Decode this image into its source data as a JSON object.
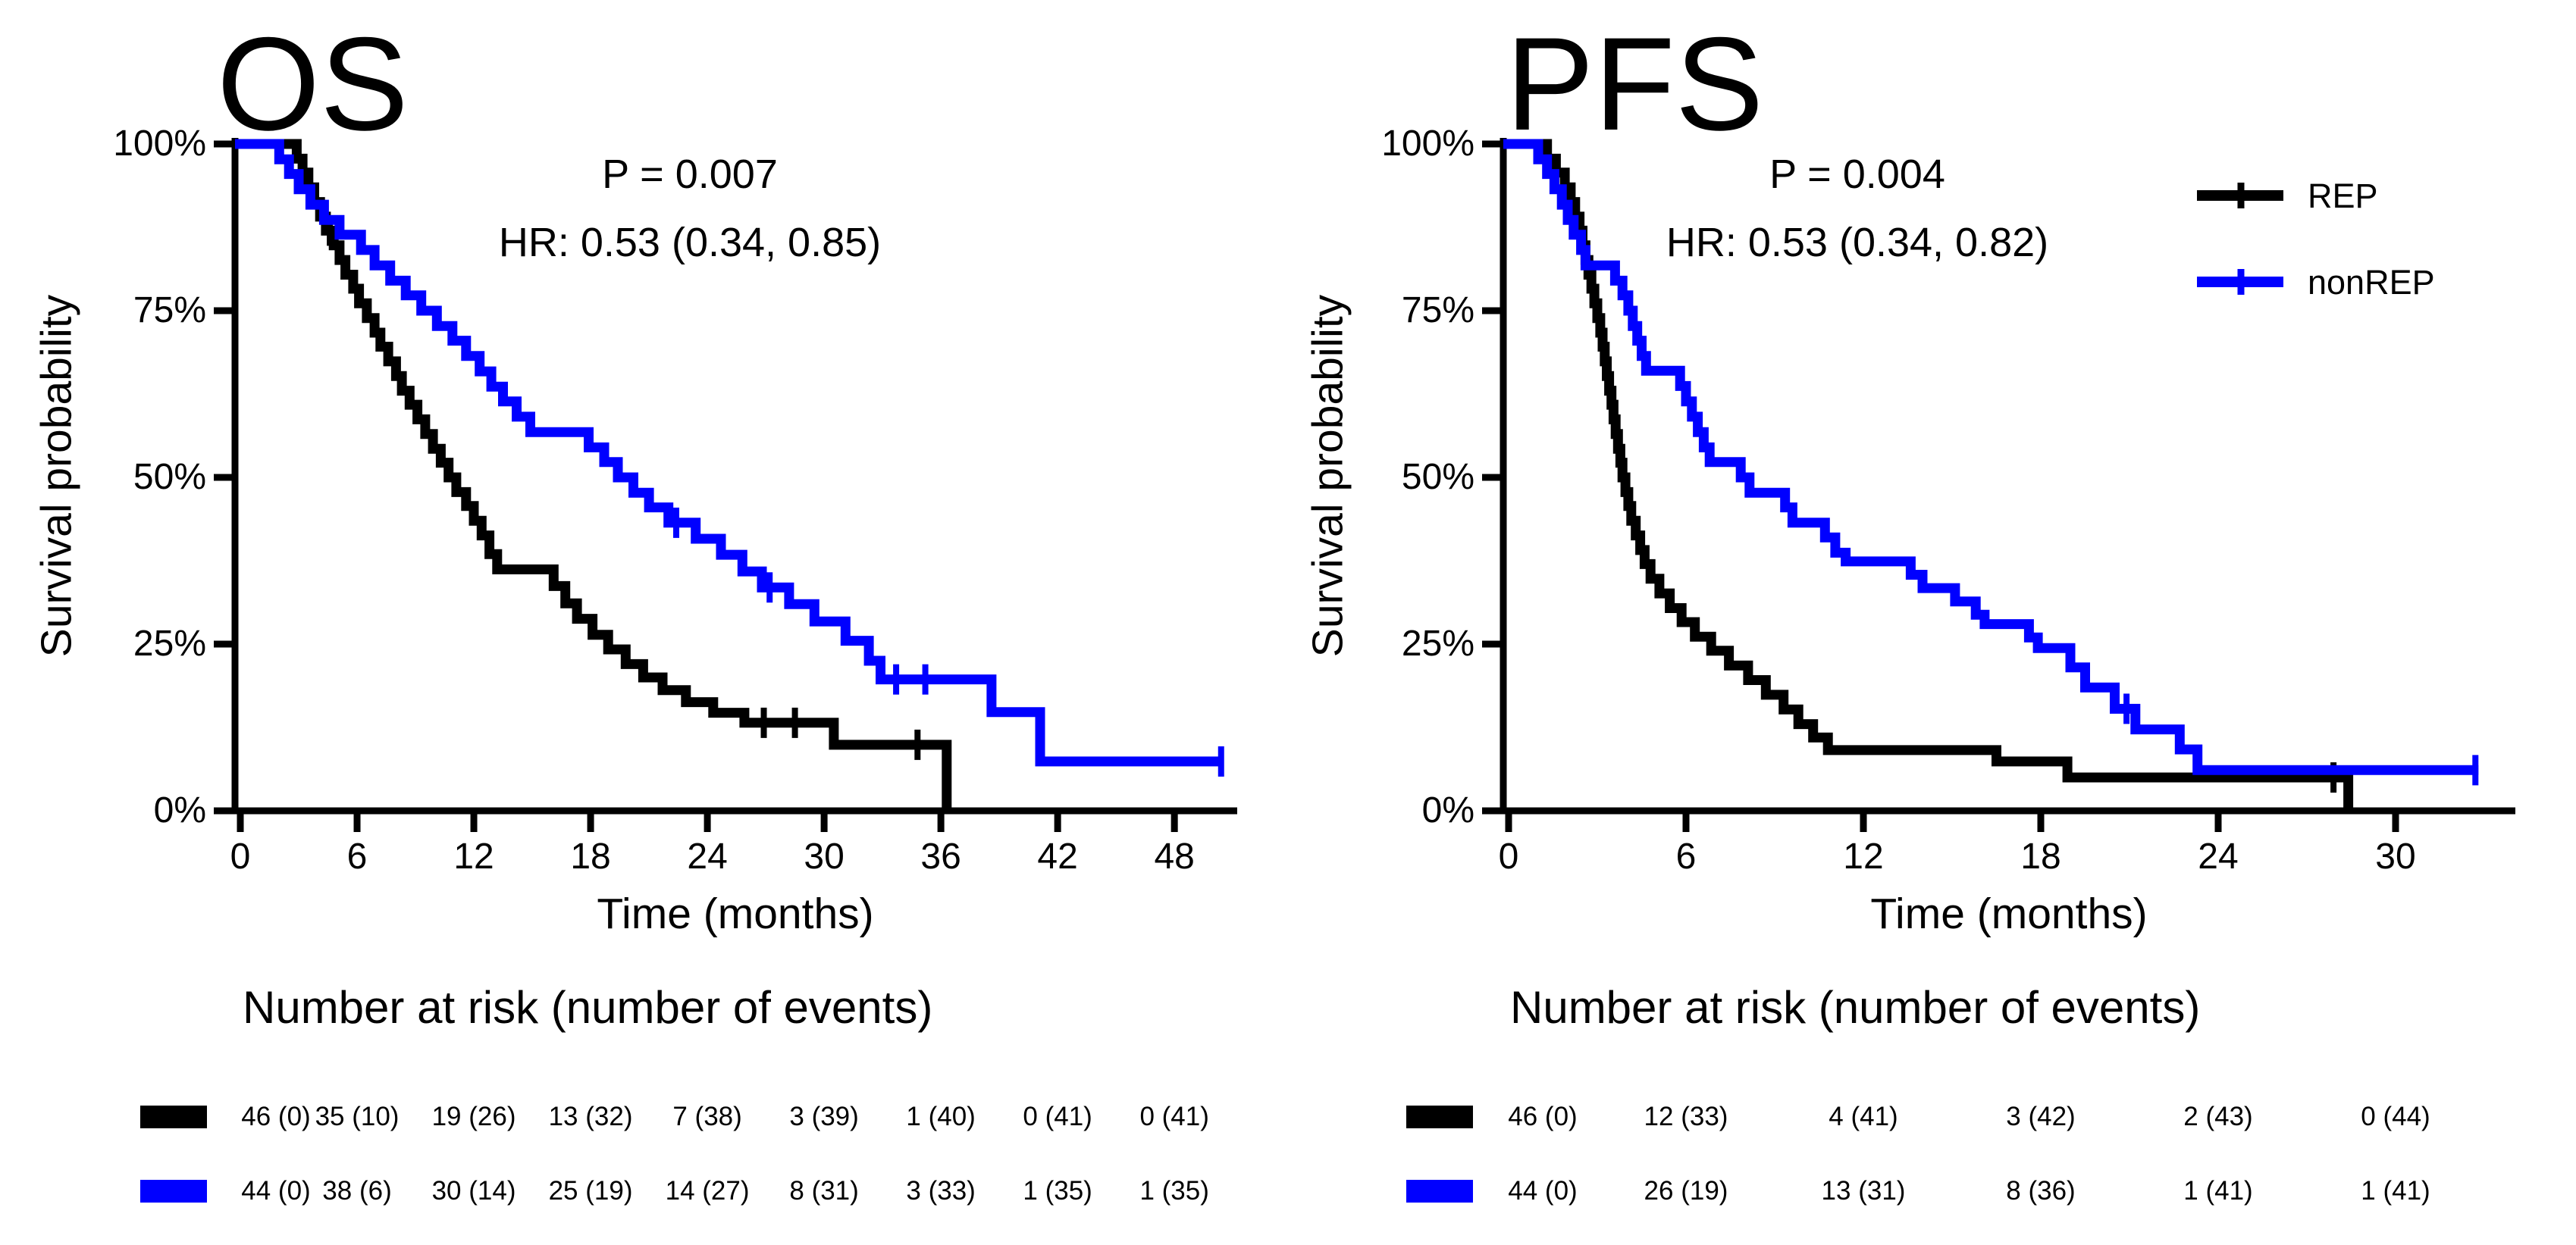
{
  "colors": {
    "rep": "#000000",
    "nonrep": "#0000ff",
    "axis": "#000000",
    "background": "#ffffff"
  },
  "chart_data": [
    {
      "type": "line",
      "subtype": "kaplan-meier-step",
      "title": "OS",
      "xlabel": "Time (months)",
      "ylabel": "Survival probability",
      "xlim": [
        0,
        51
      ],
      "ylim": [
        0,
        100
      ],
      "grid": false,
      "x_ticks": [
        0,
        6,
        12,
        18,
        24,
        30,
        36,
        42,
        48
      ],
      "y_ticks": [
        "100%",
        "75%",
        "50%",
        "25%",
        "0%"
      ],
      "y_tick_values": [
        100,
        75,
        50,
        25,
        0
      ],
      "annotations": {
        "p_value": "P = 0.007",
        "hazard_ratio": "HR: 0.53 (0.34, 0.85)"
      },
      "series": [
        {
          "name": "REP",
          "color": "#000000",
          "steps": [
            [
              0,
              100
            ],
            [
              2.9,
              97.8
            ],
            [
              3.2,
              95.7
            ],
            [
              3.5,
              93.5
            ],
            [
              3.8,
              91.3
            ],
            [
              4.1,
              89.1
            ],
            [
              4.4,
              87
            ],
            [
              4.8,
              84.8
            ],
            [
              5.1,
              82.6
            ],
            [
              5.4,
              80.4
            ],
            [
              5.8,
              78.3
            ],
            [
              6.1,
              76.1
            ],
            [
              6.5,
              73.9
            ],
            [
              6.9,
              71.7
            ],
            [
              7.2,
              69.6
            ],
            [
              7.6,
              67.4
            ],
            [
              8.0,
              65.2
            ],
            [
              8.3,
              63
            ],
            [
              8.7,
              60.9
            ],
            [
              9.1,
              58.7
            ],
            [
              9.5,
              56.5
            ],
            [
              9.9,
              54.3
            ],
            [
              10.3,
              52.2
            ],
            [
              10.7,
              50
            ],
            [
              11.1,
              47.8
            ],
            [
              11.6,
              45.7
            ],
            [
              12.0,
              43.5
            ],
            [
              12.4,
              41.3
            ],
            [
              12.8,
              38.5
            ],
            [
              13.2,
              36.2
            ],
            [
              16.1,
              33.7
            ],
            [
              16.7,
              31.1
            ],
            [
              17.3,
              28.8
            ],
            [
              18.1,
              26.4
            ],
            [
              18.9,
              24.2
            ],
            [
              19.8,
              22
            ],
            [
              20.7,
              20
            ],
            [
              21.7,
              18.1
            ],
            [
              22.9,
              16.3
            ],
            [
              24.3,
              14.7
            ],
            [
              25.9,
              13.2
            ],
            [
              30.5,
              9.9
            ],
            [
              36.3,
              0
            ]
          ],
          "censor_marks": [
            [
              4.6,
              87
            ],
            [
              26.9,
              13.2
            ],
            [
              28.5,
              13.2
            ],
            [
              34.8,
              9.9
            ]
          ]
        },
        {
          "name": "nonREP",
          "color": "#0000ff",
          "steps": [
            [
              0,
              100
            ],
            [
              2.0,
              97.7
            ],
            [
              2.5,
              95.5
            ],
            [
              3.0,
              93.2
            ],
            [
              3.6,
              90.9
            ],
            [
              4.3,
              88.6
            ],
            [
              5.1,
              86.4
            ],
            [
              6.2,
              84.1
            ],
            [
              6.9,
              81.8
            ],
            [
              7.7,
              79.5
            ],
            [
              8.5,
              77.3
            ],
            [
              9.3,
              75
            ],
            [
              10.1,
              72.7
            ],
            [
              10.9,
              70.5
            ],
            [
              11.6,
              68.2
            ],
            [
              12.3,
              65.9
            ],
            [
              12.9,
              63.6
            ],
            [
              13.5,
              61.4
            ],
            [
              14.2,
              59.1
            ],
            [
              14.9,
              56.8
            ],
            [
              17.9,
              54.5
            ],
            [
              18.7,
              52.3
            ],
            [
              19.4,
              50
            ],
            [
              20.2,
              47.7
            ],
            [
              21.0,
              45.5
            ],
            [
              22.0,
              43.2
            ],
            [
              23.4,
              40.8
            ],
            [
              24.7,
              38.4
            ],
            [
              25.8,
              35.9
            ],
            [
              26.8,
              33.5
            ],
            [
              28.2,
              31
            ],
            [
              29.5,
              28.4
            ],
            [
              31.1,
              25.5
            ],
            [
              32.3,
              22.5
            ],
            [
              32.9,
              19.7
            ],
            [
              38.6,
              14.8
            ],
            [
              41.1,
              7.4
            ],
            [
              50.5,
              7.4
            ]
          ],
          "censor_marks": [
            [
              22.4,
              43.2
            ],
            [
              27.2,
              33.5
            ],
            [
              33.7,
              19.7
            ],
            [
              35.2,
              19.7
            ],
            [
              50.4,
              7.4
            ]
          ]
        }
      ],
      "risk_table": {
        "heading": "Number at risk (number of events)",
        "times": [
          0,
          6,
          12,
          18,
          24,
          30,
          36,
          42,
          48
        ],
        "rows": [
          {
            "name": "REP",
            "color": "#000000",
            "values": [
              "46 (0)",
              "35 (10)",
              "19 (26)",
              "13 (32)",
              "7 (38)",
              "3 (39)",
              "1 (40)",
              "0 (41)",
              "0 (41)"
            ]
          },
          {
            "name": "nonREP",
            "color": "#0000ff",
            "values": [
              "44 (0)",
              "38 (6)",
              "30 (14)",
              "25 (19)",
              "14 (27)",
              "8 (31)",
              "3 (33)",
              "1 (35)",
              "1 (35)"
            ]
          }
        ]
      }
    },
    {
      "type": "line",
      "subtype": "kaplan-meier-step",
      "title": "PFS",
      "xlabel": "Time (months)",
      "ylabel": "Survival probability",
      "xlim": [
        0,
        34
      ],
      "ylim": [
        0,
        100
      ],
      "grid": false,
      "x_ticks": [
        0,
        6,
        12,
        18,
        24,
        30
      ],
      "y_ticks": [
        "100%",
        "75%",
        "50%",
        "25%",
        "0%"
      ],
      "y_tick_values": [
        100,
        75,
        50,
        25,
        0
      ],
      "annotations": {
        "p_value": "P = 0.004",
        "hazard_ratio": "HR: 0.53 (0.34, 0.82)"
      },
      "legend": [
        {
          "label": "REP",
          "color": "#000000"
        },
        {
          "label": "nonREP",
          "color": "#0000ff"
        }
      ],
      "series": [
        {
          "name": "REP",
          "color": "#000000",
          "steps": [
            [
              0,
              100
            ],
            [
              1.3,
              97.8
            ],
            [
              1.6,
              95.7
            ],
            [
              1.9,
              93.5
            ],
            [
              2.1,
              91.3
            ],
            [
              2.25,
              89.1
            ],
            [
              2.4,
              87
            ],
            [
              2.5,
              84.8
            ],
            [
              2.6,
              82.6
            ],
            [
              2.7,
              80.4
            ],
            [
              2.8,
              78.3
            ],
            [
              2.9,
              76.1
            ],
            [
              3.0,
              73.9
            ],
            [
              3.1,
              71.7
            ],
            [
              3.18,
              69.6
            ],
            [
              3.25,
              67.4
            ],
            [
              3.32,
              65.2
            ],
            [
              3.4,
              63
            ],
            [
              3.48,
              60.9
            ],
            [
              3.55,
              58.7
            ],
            [
              3.62,
              56.5
            ],
            [
              3.7,
              54.3
            ],
            [
              3.78,
              52.2
            ],
            [
              3.85,
              50
            ],
            [
              3.95,
              47.8
            ],
            [
              4.05,
              45.7
            ],
            [
              4.15,
              43.5
            ],
            [
              4.3,
              41.3
            ],
            [
              4.45,
              39.1
            ],
            [
              4.6,
              37
            ],
            [
              4.8,
              34.8
            ],
            [
              5.1,
              32.6
            ],
            [
              5.45,
              30.4
            ],
            [
              5.85,
              28.3
            ],
            [
              6.3,
              26.1
            ],
            [
              6.85,
              24
            ],
            [
              7.45,
              21.8
            ],
            [
              8.1,
              19.6
            ],
            [
              8.7,
              17.4
            ],
            [
              9.3,
              15.2
            ],
            [
              9.8,
              13
            ],
            [
              10.3,
              11
            ],
            [
              10.8,
              9.1
            ],
            [
              16.5,
              7.4
            ],
            [
              18.9,
              5
            ],
            [
              28.4,
              0
            ]
          ],
          "censor_marks": [
            [
              3.05,
              73.9
            ],
            [
              27.9,
              5
            ]
          ]
        },
        {
          "name": "nonREP",
          "color": "#0000ff",
          "steps": [
            [
              0,
              100
            ],
            [
              1.0,
              97.7
            ],
            [
              1.3,
              95.5
            ],
            [
              1.55,
              93.2
            ],
            [
              1.8,
              90.9
            ],
            [
              2.0,
              88.6
            ],
            [
              2.2,
              86.4
            ],
            [
              2.45,
              84.1
            ],
            [
              2.6,
              81.8
            ],
            [
              3.6,
              79.5
            ],
            [
              3.85,
              77.3
            ],
            [
              4.05,
              75
            ],
            [
              4.2,
              72.7
            ],
            [
              4.35,
              70.5
            ],
            [
              4.5,
              68.2
            ],
            [
              4.65,
              66
            ],
            [
              5.8,
              63.7
            ],
            [
              6.0,
              61.4
            ],
            [
              6.2,
              59.1
            ],
            [
              6.4,
              56.8
            ],
            [
              6.6,
              54.5
            ],
            [
              6.8,
              52.3
            ],
            [
              7.85,
              50
            ],
            [
              8.15,
              47.7
            ],
            [
              9.35,
              45.5
            ],
            [
              9.6,
              43.2
            ],
            [
              10.7,
              41
            ],
            [
              11.05,
              38.7
            ],
            [
              11.4,
              37.4
            ],
            [
              13.6,
              35.4
            ],
            [
              14.0,
              33.4
            ],
            [
              15.1,
              31.4
            ],
            [
              15.8,
              29.4
            ],
            [
              16.1,
              28
            ],
            [
              17.6,
              26
            ],
            [
              17.9,
              24.4
            ],
            [
              19.0,
              21.5
            ],
            [
              19.5,
              18.5
            ],
            [
              20.5,
              15.3
            ],
            [
              21.2,
              12.2
            ],
            [
              22.7,
              9.2
            ],
            [
              23.3,
              6.1
            ],
            [
              32.8,
              6.1
            ]
          ],
          "censor_marks": [
            [
              20.9,
              15.3
            ],
            [
              32.7,
              6.1
            ]
          ]
        }
      ],
      "risk_table": {
        "heading": "Number at risk (number of events)",
        "times": [
          0,
          6,
          12,
          18,
          24,
          30
        ],
        "rows": [
          {
            "name": "REP",
            "color": "#000000",
            "values": [
              "46 (0)",
              "12 (33)",
              "4 (41)",
              "3 (42)",
              "2 (43)",
              "0 (44)"
            ]
          },
          {
            "name": "nonREP",
            "color": "#0000ff",
            "values": [
              "44 (0)",
              "26 (19)",
              "13 (31)",
              "8 (36)",
              "1 (41)",
              "1 (41)"
            ]
          }
        ]
      }
    }
  ]
}
